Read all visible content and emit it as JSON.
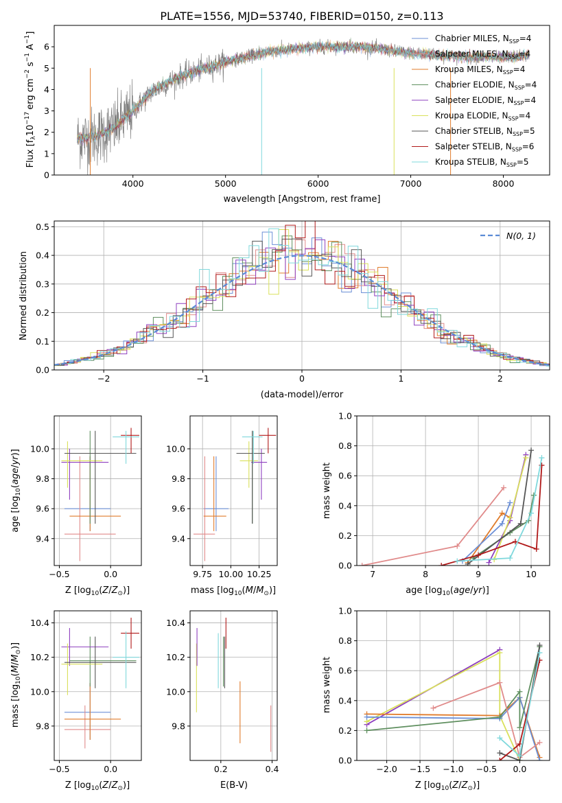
{
  "figure_title": "PLATE=1556, MJD=53740, FIBERID=0150, z=0.113",
  "series": [
    {
      "name": "Chabrier MILES",
      "sub": "SSP",
      "n": "4",
      "color": "#6b8fd6"
    },
    {
      "name": "Salpeter MILES",
      "sub": "SSP",
      "n": "4",
      "color": "#e08a8a"
    },
    {
      "name": "Kroupa MILES",
      "sub": "SSP",
      "n": "4",
      "color": "#e07b2a"
    },
    {
      "name": "Chabrier ELODIE",
      "sub": "SSP",
      "n": "4",
      "color": "#5f8f5f"
    },
    {
      "name": "Salpeter ELODIE",
      "sub": "SSP",
      "n": "4",
      "color": "#8e3fbf"
    },
    {
      "name": "Kroupa ELODIE",
      "sub": "SSP",
      "n": "4",
      "color": "#d9e05a"
    },
    {
      "name": "Chabrier STELIB",
      "sub": "SSP",
      "n": "5",
      "color": "#555555"
    },
    {
      "name": "Salpeter STELIB",
      "sub": "SSP",
      "n": "6",
      "color": "#b01818"
    },
    {
      "name": "Kroupa STELIB",
      "sub": "SSP",
      "n": "5",
      "color": "#7fd8dc"
    }
  ],
  "chart_data": [
    {
      "id": "spectrum",
      "type": "line",
      "xlabel": "wavelength [Angstrom, rest frame]",
      "ylabel_prefix": "Flux [f",
      "ylabel_suffix": "10",
      "ylabel_units": "erg cm",
      "xlim": [
        3150,
        8500
      ],
      "ylim": [
        0,
        7
      ],
      "xticks": [
        4000,
        5000,
        6000,
        7000,
        8000
      ],
      "yticks": [
        0,
        1,
        2,
        3,
        4,
        5,
        6
      ],
      "x_range_data": [
        3400,
        8280
      ],
      "continuum": [
        [
          3400,
          1.7
        ],
        [
          3600,
          1.8
        ],
        [
          3800,
          2.2
        ],
        [
          4000,
          3.0
        ],
        [
          4200,
          3.9
        ],
        [
          4500,
          4.6
        ],
        [
          5000,
          5.3
        ],
        [
          5500,
          5.8
        ],
        [
          6000,
          6.0
        ],
        [
          6500,
          6.0
        ],
        [
          7000,
          5.7
        ],
        [
          7500,
          5.55
        ],
        [
          8000,
          5.5
        ],
        [
          8280,
          5.6
        ]
      ]
    },
    {
      "id": "residuals",
      "type": "line",
      "xlabel": "(data-model)/error",
      "ylabel": "Normed distribution",
      "xlim": [
        -2.5,
        2.5
      ],
      "ylim": [
        0,
        0.52
      ],
      "xticks": [
        -2,
        -1,
        0,
        1,
        2
      ],
      "yticks": [
        0.0,
        0.1,
        0.2,
        0.3,
        0.4,
        0.5
      ],
      "legend_label": "N(0, 1)"
    },
    {
      "id": "age_vs_z",
      "type": "scatter",
      "xlabel": "Z [log10(Z/Z⊙)]",
      "ylabel": "age [log10(age/yr)]",
      "xlim": [
        -0.55,
        0.3
      ],
      "ylim": [
        9.22,
        10.22
      ],
      "xticks": [
        -0.5,
        0.0
      ],
      "yticks": [
        9.4,
        9.6,
        9.8,
        10.0
      ],
      "points": [
        {
          "s": 0,
          "x": -0.2,
          "xe": [
            -0.45,
            0.0
          ],
          "y": 9.6,
          "ye": [
            9.45,
            9.95
          ]
        },
        {
          "s": 1,
          "x": -0.3,
          "xe": [
            -0.45,
            0.05
          ],
          "y": 9.43,
          "ye": [
            9.25,
            9.95
          ]
        },
        {
          "s": 2,
          "x": -0.2,
          "xe": [
            -0.4,
            0.1
          ],
          "y": 9.55,
          "ye": [
            9.45,
            9.95
          ]
        },
        {
          "s": 3,
          "x": -0.2,
          "xe": [
            -0.4,
            0.25
          ],
          "y": 9.97,
          "ye": [
            9.5,
            10.12
          ]
        },
        {
          "s": 4,
          "x": -0.4,
          "xe": [
            -0.48,
            -0.02
          ],
          "y": 9.91,
          "ye": [
            9.66,
            10.0
          ]
        },
        {
          "s": 5,
          "x": -0.42,
          "xe": [
            -0.48,
            -0.08
          ],
          "y": 9.92,
          "ye": [
            9.74,
            10.05
          ]
        },
        {
          "s": 6,
          "x": -0.15,
          "xe": [
            -0.45,
            0.25
          ],
          "y": 9.97,
          "ye": [
            9.5,
            10.12
          ]
        },
        {
          "s": 7,
          "x": 0.2,
          "xe": [
            0.1,
            0.28
          ],
          "y": 10.09,
          "ye": [
            9.97,
            10.14
          ]
        },
        {
          "s": 8,
          "x": 0.15,
          "xe": [
            0.02,
            0.28
          ],
          "y": 10.08,
          "ye": [
            9.9,
            10.12
          ]
        }
      ]
    },
    {
      "id": "age_vs_mass",
      "type": "scatter",
      "xlabel": "mass [log10(M/M⊙)]",
      "ylabel": "",
      "xlim": [
        9.64,
        10.41
      ],
      "ylim": [
        9.22,
        10.22
      ],
      "xticks": [
        9.75,
        10.0,
        10.25
      ],
      "yticks": [
        9.4,
        9.6,
        9.8,
        10.0
      ],
      "xtick_labels": [
        "9.75",
        "10.00",
        "10.25"
      ],
      "points": [
        {
          "s": 0,
          "x": 9.87,
          "xe": [
            9.76,
            9.98
          ],
          "y": 9.6,
          "ye": [
            9.45,
            9.95
          ]
        },
        {
          "s": 1,
          "x": 9.77,
          "xe": [
            9.67,
            9.86
          ],
          "y": 9.43,
          "ye": [
            9.25,
            9.95
          ]
        },
        {
          "s": 2,
          "x": 9.85,
          "xe": [
            9.76,
            9.96
          ],
          "y": 9.55,
          "ye": [
            9.45,
            9.95
          ]
        },
        {
          "s": 3,
          "x": 10.19,
          "xe": [
            10.05,
            10.24
          ],
          "y": 9.97,
          "ye": [
            9.5,
            10.12
          ]
        },
        {
          "s": 4,
          "x": 10.27,
          "xe": [
            10.18,
            10.32
          ],
          "y": 9.91,
          "ye": [
            9.66,
            10.0
          ]
        },
        {
          "s": 5,
          "x": 10.16,
          "xe": [
            10.08,
            10.24
          ],
          "y": 9.92,
          "ye": [
            9.74,
            10.05
          ]
        },
        {
          "s": 6,
          "x": 10.19,
          "xe": [
            10.05,
            10.3
          ],
          "y": 9.97,
          "ye": [
            9.5,
            10.12
          ]
        },
        {
          "s": 7,
          "x": 10.33,
          "xe": [
            10.25,
            10.4
          ],
          "y": 10.09,
          "ye": [
            9.97,
            10.14
          ]
        },
        {
          "s": 8,
          "x": 10.2,
          "xe": [
            10.1,
            10.28
          ],
          "y": 10.08,
          "ye": [
            9.9,
            10.12
          ]
        }
      ]
    },
    {
      "id": "weight_vs_age",
      "type": "line",
      "xlabel": "age [log10(age/yr)]",
      "ylabel": "mass weight",
      "xlim": [
        6.7,
        10.35
      ],
      "ylim": [
        0,
        1
      ],
      "xticks": [
        7,
        8,
        9,
        10
      ],
      "yticks": [
        0.0,
        0.2,
        0.4,
        0.6,
        0.8,
        1.0
      ],
      "lines": [
        {
          "s": 1,
          "pts": [
            [
              6.8,
              0.0
            ],
            [
              8.6,
              0.13
            ],
            [
              9.48,
              0.52
            ]
          ]
        },
        {
          "s": 2,
          "pts": [
            [
              8.8,
              0.02
            ],
            [
              9.45,
              0.35
            ],
            [
              9.6,
              0.32
            ]
          ]
        },
        {
          "s": 0,
          "pts": [
            [
              8.7,
              0.03
            ],
            [
              9.45,
              0.28
            ],
            [
              9.6,
              0.42
            ]
          ]
        },
        {
          "s": 3,
          "pts": [
            [
              8.9,
              0.05
            ],
            [
              9.6,
              0.22
            ],
            [
              9.95,
              0.3
            ],
            [
              10.05,
              0.47
            ]
          ]
        },
        {
          "s": 4,
          "pts": [
            [
              9.2,
              0.02
            ],
            [
              9.6,
              0.3
            ],
            [
              9.9,
              0.74
            ]
          ]
        },
        {
          "s": 5,
          "pts": [
            [
              9.3,
              0.04
            ],
            [
              9.6,
              0.32
            ],
            [
              9.9,
              0.72
            ]
          ]
        },
        {
          "s": 6,
          "pts": [
            [
              8.8,
              0.01
            ],
            [
              9.8,
              0.28
            ],
            [
              10.0,
              0.77
            ]
          ]
        },
        {
          "s": 7,
          "pts": [
            [
              8.3,
              0.0
            ],
            [
              9.0,
              0.07
            ],
            [
              9.7,
              0.16
            ],
            [
              10.1,
              0.11
            ],
            [
              10.2,
              0.67
            ]
          ]
        },
        {
          "s": 8,
          "pts": [
            [
              8.6,
              0.03
            ],
            [
              9.6,
              0.05
            ],
            [
              10.0,
              0.35
            ],
            [
              10.2,
              0.72
            ]
          ]
        }
      ]
    },
    {
      "id": "mass_vs_z",
      "type": "scatter",
      "xlabel": "Z [log10(Z/Z⊙)]",
      "ylabel": "mass [log10(M/M⊙)]",
      "xlim": [
        -0.55,
        0.3
      ],
      "ylim": [
        9.6,
        10.47
      ],
      "xticks": [
        -0.5,
        0.0
      ],
      "yticks": [
        9.8,
        10.0,
        10.2,
        10.4
      ],
      "points": [
        {
          "s": 0,
          "x": -0.2,
          "xe": [
            -0.45,
            0.0
          ],
          "y": 9.88,
          "ye": [
            9.72,
            10.05
          ]
        },
        {
          "s": 1,
          "x": -0.25,
          "xe": [
            -0.45,
            0.0
          ],
          "y": 9.78,
          "ye": [
            9.67,
            9.92
          ]
        },
        {
          "s": 2,
          "x": -0.2,
          "xe": [
            -0.45,
            0.1
          ],
          "y": 9.84,
          "ye": [
            9.72,
            10.05
          ]
        },
        {
          "s": 3,
          "x": -0.2,
          "xe": [
            -0.4,
            0.25
          ],
          "y": 10.18,
          "ye": [
            10.03,
            10.32
          ]
        },
        {
          "s": 4,
          "x": -0.4,
          "xe": [
            -0.48,
            -0.02
          ],
          "y": 10.26,
          "ye": [
            10.15,
            10.37
          ]
        },
        {
          "s": 5,
          "x": -0.42,
          "xe": [
            -0.48,
            -0.08
          ],
          "y": 10.16,
          "ye": [
            9.98,
            10.28
          ]
        },
        {
          "s": 6,
          "x": -0.15,
          "xe": [
            -0.45,
            0.25
          ],
          "y": 10.17,
          "ye": [
            10.02,
            10.32
          ]
        },
        {
          "s": 7,
          "x": 0.2,
          "xe": [
            0.1,
            0.28
          ],
          "y": 10.34,
          "ye": [
            10.25,
            10.43
          ]
        },
        {
          "s": 8,
          "x": 0.15,
          "xe": [
            0.02,
            0.28
          ],
          "y": 10.2,
          "ye": [
            10.02,
            10.35
          ]
        }
      ]
    },
    {
      "id": "ebv",
      "type": "scatter",
      "xlabel": "E(B-V)",
      "ylabel": "",
      "xlim": [
        0.08,
        0.42
      ],
      "ylim": [
        9.6,
        10.47
      ],
      "xticks": [
        0.2,
        0.4
      ],
      "yticks": [
        9.8,
        10.0,
        10.2,
        10.4
      ],
      "xtick_labels": [
        "0.2",
        "0.4"
      ],
      "points": [
        {
          "s": 5,
          "x": 0.105,
          "ye": [
            9.88,
            10.28
          ]
        },
        {
          "s": 4,
          "x": 0.107,
          "ye": [
            10.15,
            10.37
          ]
        },
        {
          "s": 8,
          "x": 0.19,
          "ye": [
            10.02,
            10.34
          ]
        },
        {
          "s": 3,
          "x": 0.21,
          "ye": [
            10.03,
            10.32
          ]
        },
        {
          "s": 7,
          "x": 0.22,
          "ye": [
            10.25,
            10.43
          ]
        },
        {
          "s": 6,
          "x": 0.215,
          "ye": [
            10.02,
            10.32
          ]
        },
        {
          "s": 2,
          "x": 0.275,
          "ye": [
            9.7,
            10.06
          ]
        },
        {
          "s": 1,
          "x": 0.395,
          "ye": [
            9.65,
            9.92
          ]
        }
      ]
    },
    {
      "id": "weight_vs_z",
      "type": "line",
      "xlabel": "Z [log10(Z/Z⊙)]",
      "ylabel": "mass weight",
      "xlim": [
        -2.45,
        0.45
      ],
      "ylim": [
        0,
        1
      ],
      "xticks": [
        -2.0,
        -1.5,
        -1.0,
        -0.5,
        0.0
      ],
      "yticks": [
        0.0,
        0.2,
        0.4,
        0.6,
        0.8,
        1.0
      ],
      "xtick_labels": [
        "−2.0",
        "−1.5",
        "−1.0",
        "−0.5",
        "0.0"
      ],
      "lines": [
        {
          "s": 4,
          "pts": [
            [
              -2.3,
              0.24
            ],
            [
              -0.3,
              0.74
            ]
          ]
        },
        {
          "s": 5,
          "pts": [
            [
              -2.3,
              0.26
            ],
            [
              -0.3,
              0.72
            ],
            [
              -0.3,
              0.3
            ],
            [
              0.0,
              0.0
            ]
          ]
        },
        {
          "s": 2,
          "pts": [
            [
              -2.3,
              0.31
            ],
            [
              -0.3,
              0.3
            ],
            [
              0.0,
              0.42
            ],
            [
              0.3,
              0.02
            ]
          ]
        },
        {
          "s": 0,
          "pts": [
            [
              -2.3,
              0.29
            ],
            [
              -0.3,
              0.28
            ],
            [
              0.0,
              0.42
            ],
            [
              0.3,
              0.0
            ]
          ]
        },
        {
          "s": 3,
          "pts": [
            [
              -2.3,
              0.2
            ],
            [
              -0.3,
              0.29
            ],
            [
              0.0,
              0.46
            ],
            [
              0.0,
              0.22
            ],
            [
              0.3,
              0.76
            ]
          ]
        },
        {
          "s": 1,
          "pts": [
            [
              -1.3,
              0.35
            ],
            [
              -0.3,
              0.52
            ],
            [
              0.0,
              0.02
            ],
            [
              0.3,
              0.12
            ]
          ]
        },
        {
          "s": 6,
          "pts": [
            [
              -0.3,
              0.05
            ],
            [
              0.0,
              0.0
            ],
            [
              0.3,
              0.77
            ]
          ]
        },
        {
          "s": 7,
          "pts": [
            [
              -0.3,
              0.0
            ],
            [
              0.0,
              0.11
            ],
            [
              0.3,
              0.67
            ]
          ]
        },
        {
          "s": 8,
          "pts": [
            [
              -0.3,
              0.15
            ],
            [
              0.0,
              0.03
            ],
            [
              0.3,
              0.72
            ]
          ]
        }
      ]
    }
  ]
}
